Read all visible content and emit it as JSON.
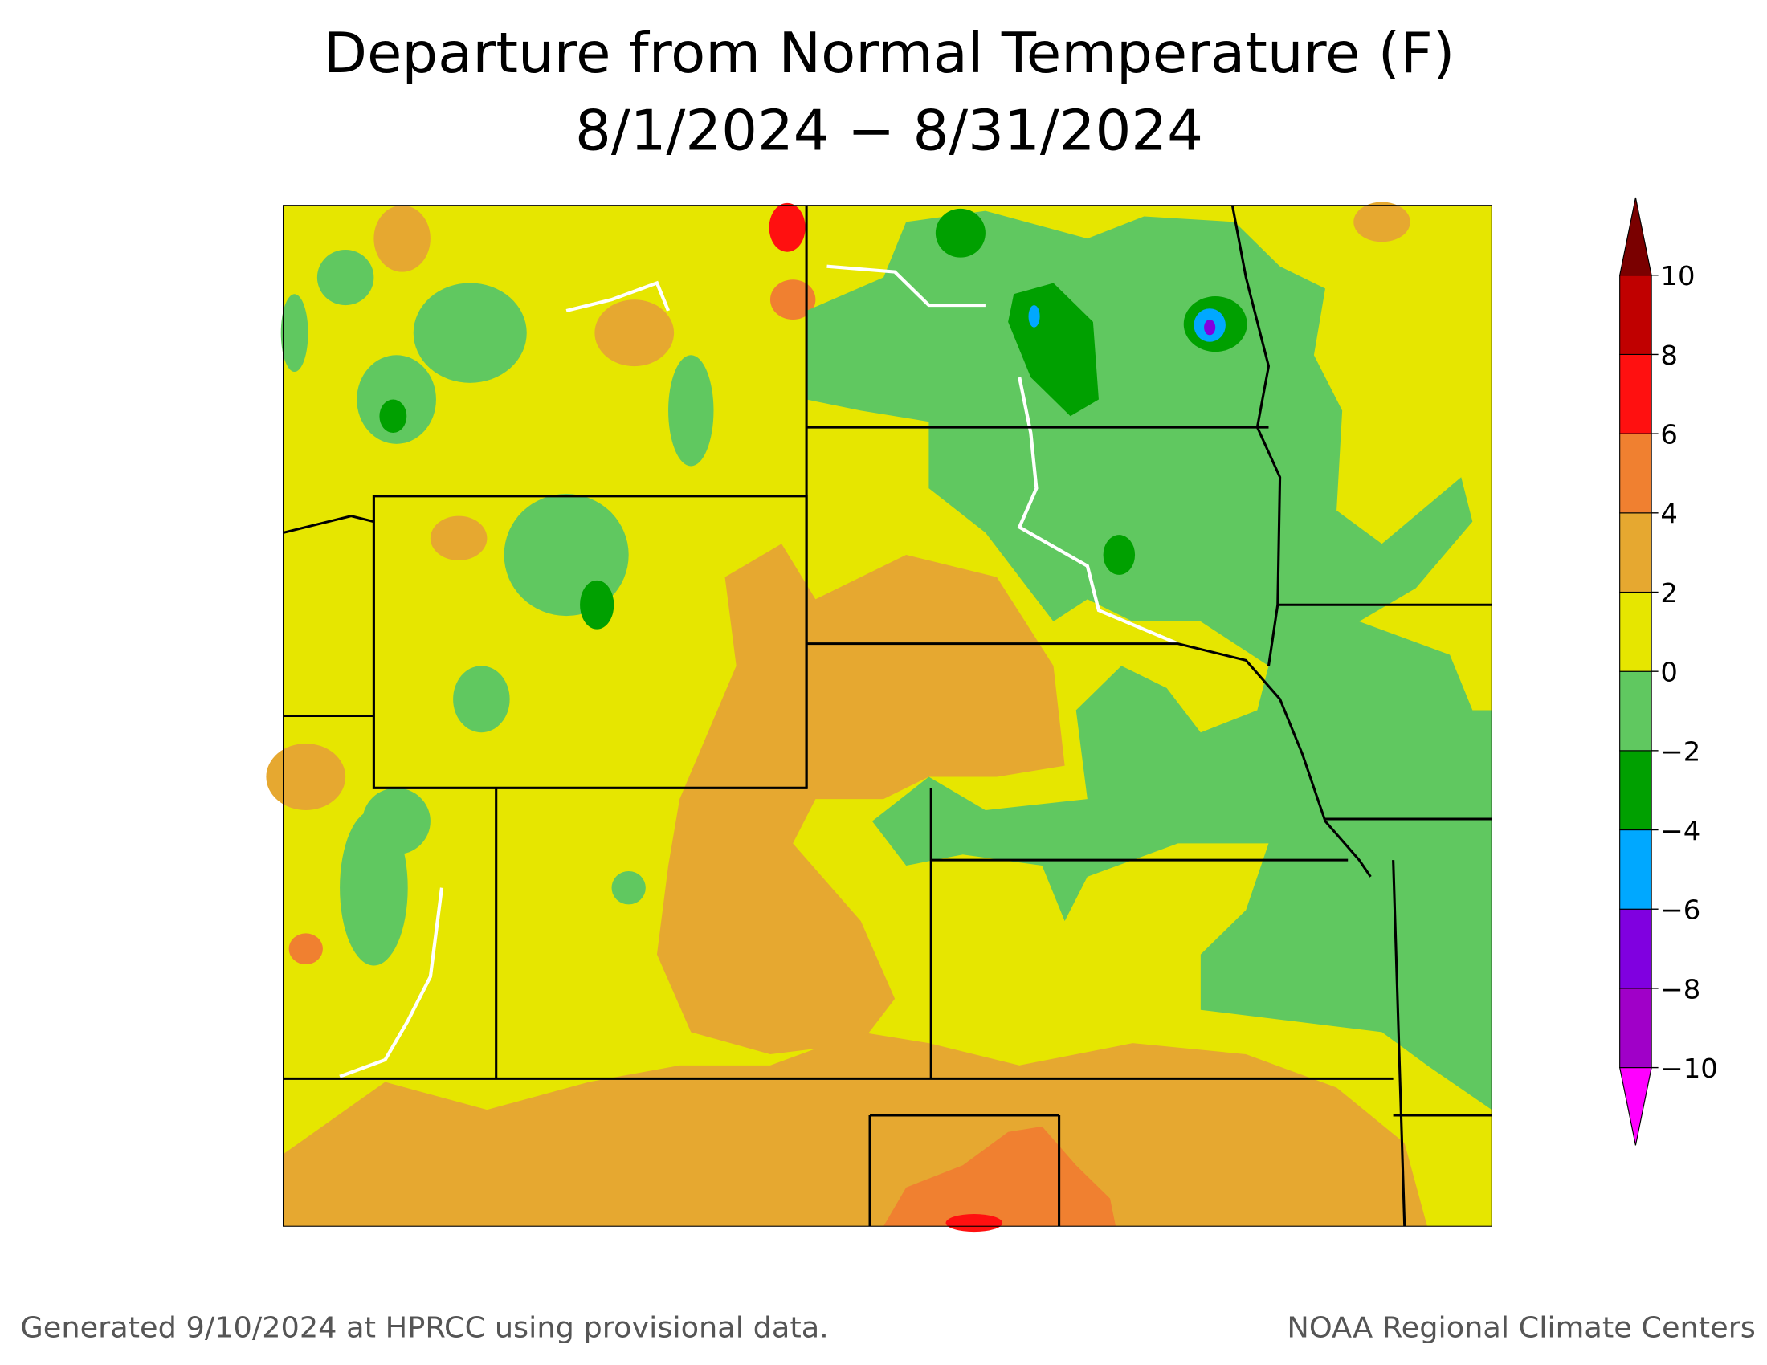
{
  "header": {
    "title": "Departure from Normal Temperature (F)",
    "subtitle": "8/1/2024 − 8/31/2024"
  },
  "colorbar": {
    "vlim": [
      -10,
      10
    ],
    "ticks": [
      {
        "value": -10,
        "label": "−10"
      },
      {
        "value": -8,
        "label": "−8"
      },
      {
        "value": -6,
        "label": "−6"
      },
      {
        "value": -4,
        "label": "−4"
      },
      {
        "value": -2,
        "label": "−2"
      },
      0,
      2,
      4,
      6,
      8,
      10
    ],
    "colors": [
      "#ff00ff",
      "#a000c8",
      "#8000e0",
      "#00a8ff",
      "#00a000",
      "#60c860",
      "#e6e600",
      "#e6a830",
      "#f08030",
      "#ff1010",
      "#c00000",
      "#7a0000"
    ]
  },
  "footer": {
    "left": "Generated 9/10/2024 at HPRCC using provisional data.",
    "right": "NOAA Regional Climate Centers"
  }
}
